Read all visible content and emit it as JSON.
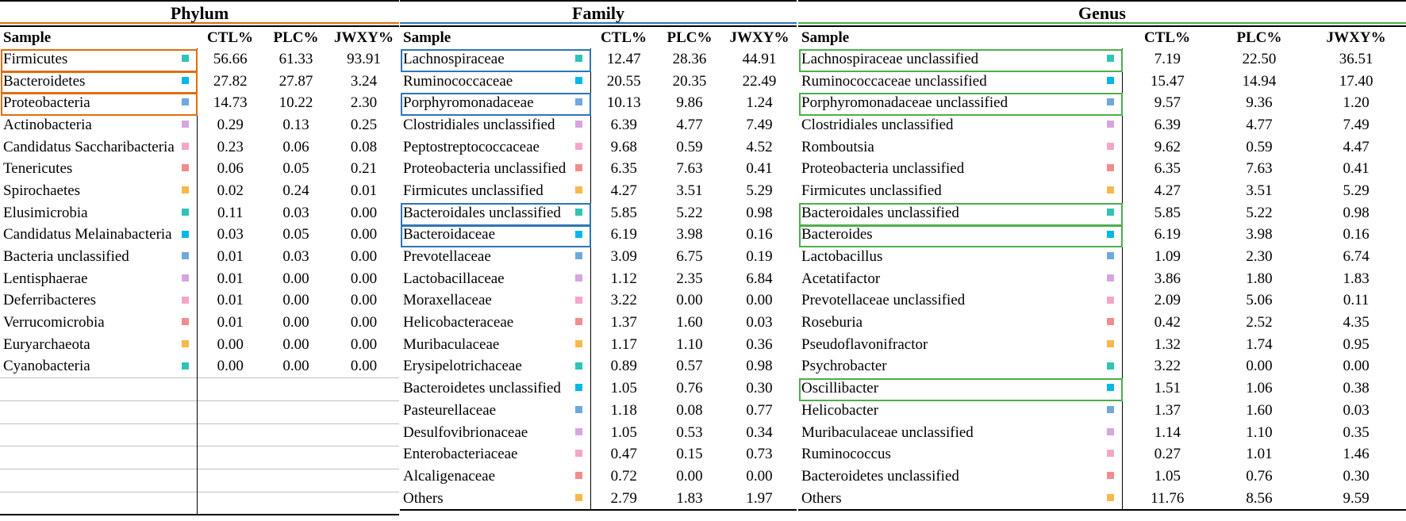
{
  "colors": {
    "phylum_accent": "#E36C09",
    "family_accent": "#2E75B6",
    "genus_accent": "#4DAF4A",
    "teal": "#2EC4B6",
    "cyan": "#00B8E6",
    "blue": "#6FA8DC",
    "lavender": "#D5A6E0",
    "pink": "#F4A6C8",
    "salmon": "#F28C8C",
    "orange": "#F7B84B"
  },
  "phylum": {
    "title": "Phylum",
    "headers": [
      "Sample",
      "CTL%",
      "PLC%",
      "JWXY%"
    ],
    "rows": [
      {
        "name": "Firmicutes",
        "ctl": "56.66",
        "plc": "61.33",
        "jwxy": "93.91",
        "color": "#2EC4B6"
      },
      {
        "name": "Bacteroidetes",
        "ctl": "27.82",
        "plc": "27.87",
        "jwxy": "3.24",
        "color": "#00B8E6"
      },
      {
        "name": "Proteobacteria",
        "ctl": "14.73",
        "plc": "10.22",
        "jwxy": "2.30",
        "color": "#6FA8DC"
      },
      {
        "name": "Actinobacteria",
        "ctl": "0.29",
        "plc": "0.13",
        "jwxy": "0.25",
        "color": "#D5A6E0"
      },
      {
        "name": "Candidatus Saccharibacteria",
        "ctl": "0.23",
        "plc": "0.06",
        "jwxy": "0.08",
        "color": "#F4A6C8"
      },
      {
        "name": "Tenericutes",
        "ctl": "0.06",
        "plc": "0.05",
        "jwxy": "0.21",
        "color": "#F28C8C"
      },
      {
        "name": "Spirochaetes",
        "ctl": "0.02",
        "plc": "0.24",
        "jwxy": "0.01",
        "color": "#F7B84B"
      },
      {
        "name": "Elusimicrobia",
        "ctl": "0.11",
        "plc": "0.03",
        "jwxy": "0.00",
        "color": "#2EC4B6"
      },
      {
        "name": "Candidatus Melainabacteria",
        "ctl": "0.03",
        "plc": "0.05",
        "jwxy": "0.00",
        "color": "#00B8E6"
      },
      {
        "name": "Bacteria unclassified",
        "ctl": "0.01",
        "plc": "0.03",
        "jwxy": "0.00",
        "color": "#6FA8DC"
      },
      {
        "name": "Lentisphaerae",
        "ctl": "0.01",
        "plc": "0.00",
        "jwxy": "0.00",
        "color": "#D5A6E0"
      },
      {
        "name": "Deferribacteres",
        "ctl": "0.01",
        "plc": "0.00",
        "jwxy": "0.00",
        "color": "#F4A6C8"
      },
      {
        "name": "Verrucomicrobia",
        "ctl": "0.01",
        "plc": "0.00",
        "jwxy": "0.00",
        "color": "#F28C8C"
      },
      {
        "name": "Euryarchaeota",
        "ctl": "0.00",
        "plc": "0.00",
        "jwxy": "0.00",
        "color": "#F7B84B"
      },
      {
        "name": "Cyanobacteria",
        "ctl": "0.00",
        "plc": "0.00",
        "jwxy": "0.00",
        "color": "#2EC4B6"
      }
    ]
  },
  "family": {
    "title": "Family",
    "headers": [
      "Sample",
      "CTL%",
      "PLC%",
      "JWXY%"
    ],
    "rows": [
      {
        "name": "Lachnospiraceae",
        "ctl": "12.47",
        "plc": "28.36",
        "jwxy": "44.91",
        "color": "#2EC4B6"
      },
      {
        "name": "Ruminococcaceae",
        "ctl": "20.55",
        "plc": "20.35",
        "jwxy": "22.49",
        "color": "#00B8E6"
      },
      {
        "name": "Porphyromonadaceae",
        "ctl": "10.13",
        "plc": "9.86",
        "jwxy": "1.24",
        "color": "#6FA8DC"
      },
      {
        "name": "Clostridiales unclassified",
        "ctl": "6.39",
        "plc": "4.77",
        "jwxy": "7.49",
        "color": "#D5A6E0"
      },
      {
        "name": "Peptostreptococcaceae",
        "ctl": "9.68",
        "plc": "0.59",
        "jwxy": "4.52",
        "color": "#F4A6C8"
      },
      {
        "name": "Proteobacteria unclassified",
        "ctl": "6.35",
        "plc": "7.63",
        "jwxy": "0.41",
        "color": "#F28C8C"
      },
      {
        "name": "Firmicutes unclassified",
        "ctl": "4.27",
        "plc": "3.51",
        "jwxy": "5.29",
        "color": "#F7B84B"
      },
      {
        "name": "Bacteroidales unclassified",
        "ctl": "5.85",
        "plc": "5.22",
        "jwxy": "0.98",
        "color": "#2EC4B6"
      },
      {
        "name": "Bacteroidaceae",
        "ctl": "6.19",
        "plc": "3.98",
        "jwxy": "0.16",
        "color": "#00B8E6"
      },
      {
        "name": "Prevotellaceae",
        "ctl": "3.09",
        "plc": "6.75",
        "jwxy": "0.19",
        "color": "#6FA8DC"
      },
      {
        "name": "Lactobacillaceae",
        "ctl": "1.12",
        "plc": "2.35",
        "jwxy": "6.84",
        "color": "#D5A6E0"
      },
      {
        "name": "Moraxellaceae",
        "ctl": "3.22",
        "plc": "0.00",
        "jwxy": "0.00",
        "color": "#F4A6C8"
      },
      {
        "name": "Helicobacteraceae",
        "ctl": "1.37",
        "plc": "1.60",
        "jwxy": "0.03",
        "color": "#F28C8C"
      },
      {
        "name": "Muribaculaceae",
        "ctl": "1.17",
        "plc": "1.10",
        "jwxy": "0.36",
        "color": "#F7B84B"
      },
      {
        "name": "Erysipelotrichaceae",
        "ctl": "0.89",
        "plc": "0.57",
        "jwxy": "0.98",
        "color": "#2EC4B6"
      },
      {
        "name": "Bacteroidetes unclassified",
        "ctl": "1.05",
        "plc": "0.76",
        "jwxy": "0.30",
        "color": "#00B8E6"
      },
      {
        "name": "Pasteurellaceae",
        "ctl": "1.18",
        "plc": "0.08",
        "jwxy": "0.77",
        "color": "#6FA8DC"
      },
      {
        "name": "Desulfovibrionaceae",
        "ctl": "1.05",
        "plc": "0.53",
        "jwxy": "0.34",
        "color": "#D5A6E0"
      },
      {
        "name": "Enterobacteriaceae",
        "ctl": "0.47",
        "plc": "0.15",
        "jwxy": "0.73",
        "color": "#F4A6C8"
      },
      {
        "name": "Alcaligenaceae",
        "ctl": "0.72",
        "plc": "0.00",
        "jwxy": "0.00",
        "color": "#F28C8C"
      },
      {
        "name": "Others",
        "ctl": "2.79",
        "plc": "1.83",
        "jwxy": "1.97",
        "color": "#F7B84B"
      }
    ]
  },
  "genus": {
    "title": "Genus",
    "headers": [
      "Sample",
      "CTL%",
      "PLC%",
      "JWXY%"
    ],
    "rows": [
      {
        "name": "Lachnospiraceae unclassified",
        "ctl": "7.19",
        "plc": "22.50",
        "jwxy": "36.51",
        "color": "#2EC4B6"
      },
      {
        "name": "Ruminococcaceae unclassified",
        "ctl": "15.47",
        "plc": "14.94",
        "jwxy": "17.40",
        "color": "#00B8E6"
      },
      {
        "name": "Porphyromonadaceae unclassified",
        "ctl": "9.57",
        "plc": "9.36",
        "jwxy": "1.20",
        "color": "#6FA8DC"
      },
      {
        "name": "Clostridiales unclassified",
        "ctl": "6.39",
        "plc": "4.77",
        "jwxy": "7.49",
        "color": "#D5A6E0"
      },
      {
        "name": "Romboutsia",
        "ctl": "9.62",
        "plc": "0.59",
        "jwxy": "4.47",
        "color": "#F4A6C8"
      },
      {
        "name": "Proteobacteria unclassified",
        "ctl": "6.35",
        "plc": "7.63",
        "jwxy": "0.41",
        "color": "#F28C8C"
      },
      {
        "name": "Firmicutes unclassified",
        "ctl": "4.27",
        "plc": "3.51",
        "jwxy": "5.29",
        "color": "#F7B84B"
      },
      {
        "name": "Bacteroidales unclassified",
        "ctl": "5.85",
        "plc": "5.22",
        "jwxy": "0.98",
        "color": "#2EC4B6"
      },
      {
        "name": "Bacteroides",
        "ctl": "6.19",
        "plc": "3.98",
        "jwxy": "0.16",
        "color": "#00B8E6"
      },
      {
        "name": "Lactobacillus",
        "ctl": "1.09",
        "plc": "2.30",
        "jwxy": "6.74",
        "color": "#6FA8DC"
      },
      {
        "name": "Acetatifactor",
        "ctl": "3.86",
        "plc": "1.80",
        "jwxy": "1.83",
        "color": "#D5A6E0"
      },
      {
        "name": "Prevotellaceae unclassified",
        "ctl": "2.09",
        "plc": "5.06",
        "jwxy": "0.11",
        "color": "#F4A6C8"
      },
      {
        "name": "Roseburia",
        "ctl": "0.42",
        "plc": "2.52",
        "jwxy": "4.35",
        "color": "#F28C8C"
      },
      {
        "name": "Pseudoflavonifractor",
        "ctl": "1.32",
        "plc": "1.74",
        "jwxy": "0.95",
        "color": "#F7B84B"
      },
      {
        "name": "Psychrobacter",
        "ctl": "3.22",
        "plc": "0.00",
        "jwxy": "0.00",
        "color": "#2EC4B6"
      },
      {
        "name": "Oscillibacter",
        "ctl": "1.51",
        "plc": "1.06",
        "jwxy": "0.38",
        "color": "#00B8E6"
      },
      {
        "name": "Helicobacter",
        "ctl": "1.37",
        "plc": "1.60",
        "jwxy": "0.03",
        "color": "#6FA8DC"
      },
      {
        "name": "Muribaculaceae unclassified",
        "ctl": "1.14",
        "plc": "1.10",
        "jwxy": "0.35",
        "color": "#D5A6E0"
      },
      {
        "name": "Ruminococcus",
        "ctl": "0.27",
        "plc": "1.01",
        "jwxy": "1.46",
        "color": "#F4A6C8"
      },
      {
        "name": "Bacteroidetes unclassified",
        "ctl": "1.05",
        "plc": "0.76",
        "jwxy": "0.30",
        "color": "#F28C8C"
      },
      {
        "name": "Others",
        "ctl": "11.76",
        "plc": "8.56",
        "jwxy": "9.59",
        "color": "#F7B84B"
      }
    ]
  }
}
